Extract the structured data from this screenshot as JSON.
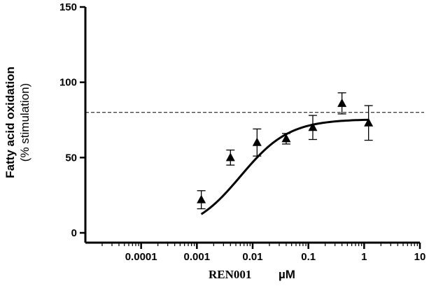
{
  "chart_data": {
    "type": "scatter",
    "title": "",
    "xscale": "log",
    "xlim": [
      1e-05,
      10
    ],
    "ylim": [
      0,
      150
    ],
    "grid": false,
    "legend": "none",
    "ylabel_line1": "Fatty acid oxidation",
    "ylabel_line2": "(% stimulation)",
    "xlabel_compound": "REN001",
    "xlabel_unit": "µM",
    "x_ticks": [
      {
        "value": 0.0001,
        "label": "0.0001"
      },
      {
        "value": 0.001,
        "label": "0.001"
      },
      {
        "value": 0.01,
        "label": "0.01"
      },
      {
        "value": 0.1,
        "label": "0.1"
      },
      {
        "value": 1,
        "label": "1"
      },
      {
        "value": 10,
        "label": "10"
      }
    ],
    "y_ticks": [
      {
        "value": 0,
        "label": "0"
      },
      {
        "value": 50,
        "label": "50"
      },
      {
        "value": 100,
        "label": "100"
      },
      {
        "value": 150,
        "label": "150"
      }
    ],
    "points": [
      {
        "x": 0.0012,
        "y": 22,
        "err": 6
      },
      {
        "x": 0.004,
        "y": 50,
        "err": 5
      },
      {
        "x": 0.012,
        "y": 60,
        "err": 9
      },
      {
        "x": 0.04,
        "y": 62.5,
        "err": 3.5
      },
      {
        "x": 0.12,
        "y": 70,
        "err": 8
      },
      {
        "x": 0.4,
        "y": 86,
        "err": 7
      },
      {
        "x": 1.2,
        "y": 73,
        "err": 11.5
      }
    ],
    "reference_line": {
      "y": 80,
      "style": "dashed"
    },
    "fit": {
      "model": "sigmoid",
      "bottom": 0,
      "top": 75.5,
      "ec50": 0.0061,
      "hill": 1,
      "x_range": [
        0.0012,
        1.2
      ]
    },
    "colors": {
      "marker": "#000000",
      "axis": "#000000",
      "curve": "#000000",
      "reference": "#000000"
    }
  }
}
